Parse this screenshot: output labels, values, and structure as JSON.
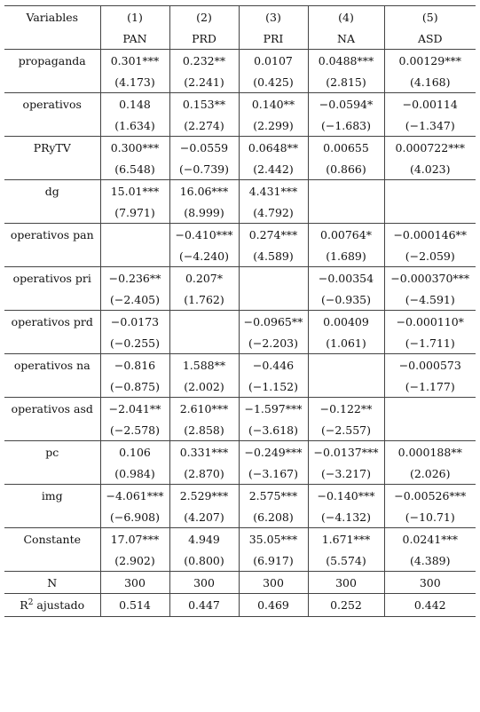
{
  "table": {
    "header_label": "Variables",
    "column_numbers": [
      "(1)",
      "(2)",
      "(3)",
      "(4)",
      "(5)"
    ],
    "column_names": [
      "PAN",
      "PRD",
      "PRI",
      "NA",
      "ASD"
    ],
    "rows": [
      {
        "label": "propaganda",
        "coef": [
          "0.301***",
          "0.232**",
          "0.0107",
          "0.0488***",
          "0.00129***"
        ],
        "se": [
          "(4.173)",
          "(2.241)",
          "(0.425)",
          "(2.815)",
          "(4.168)"
        ]
      },
      {
        "label": "operativos",
        "coef": [
          "0.148",
          "0.153**",
          "0.140**",
          "−0.0594*",
          "−0.00114"
        ],
        "se": [
          "(1.634)",
          "(2.274)",
          "(2.299)",
          "(−1.683)",
          "(−1.347)"
        ]
      },
      {
        "label": "PRyTV",
        "coef": [
          "0.300***",
          "−0.0559",
          "0.0648**",
          "0.00655",
          "0.000722***"
        ],
        "se": [
          "(6.548)",
          "(−0.739)",
          "(2.442)",
          "(0.866)",
          "(4.023)"
        ]
      },
      {
        "label": "dg",
        "coef": [
          "15.01***",
          "16.06***",
          "4.431***",
          "",
          ""
        ],
        "se": [
          "(7.971)",
          "(8.999)",
          "(4.792)",
          "",
          ""
        ]
      },
      {
        "label": "operativos pan",
        "coef": [
          "",
          "−0.410***",
          "0.274***",
          "0.00764*",
          "−0.000146**"
        ],
        "se": [
          "",
          "(−4.240)",
          "(4.589)",
          "(1.689)",
          "(−2.059)"
        ]
      },
      {
        "label": "operativos pri",
        "coef": [
          "−0.236**",
          "0.207*",
          "",
          "−0.00354",
          "−0.000370***"
        ],
        "se": [
          "(−2.405)",
          "(1.762)",
          "",
          "(−0.935)",
          "(−4.591)"
        ]
      },
      {
        "label": "operativos prd",
        "coef": [
          "−0.0173",
          "",
          "−0.0965**",
          "0.00409",
          "−0.000110*"
        ],
        "se": [
          "(−0.255)",
          "",
          "(−2.203)",
          "(1.061)",
          "(−1.711)"
        ]
      },
      {
        "label": "operativos na",
        "coef": [
          "−0.816",
          "1.588**",
          "−0.446",
          "",
          "−0.000573"
        ],
        "se": [
          "(−0.875)",
          "(2.002)",
          "(−1.152)",
          "",
          "(−1.177)"
        ]
      },
      {
        "label": "operativos asd",
        "coef": [
          "−2.041**",
          "2.610***",
          "−1.597***",
          "−0.122**",
          ""
        ],
        "se": [
          "(−2.578)",
          "(2.858)",
          "(−3.618)",
          "(−2.557)",
          ""
        ]
      },
      {
        "label": "pc",
        "coef": [
          "0.106",
          "0.331***",
          "−0.249***",
          "−0.0137***",
          "0.000188**"
        ],
        "se": [
          "(0.984)",
          "(2.870)",
          "(−3.167)",
          "(−3.217)",
          "(2.026)"
        ]
      },
      {
        "label": "img",
        "coef": [
          "−4.061***",
          "2.529***",
          "2.575***",
          "−0.140***",
          "−0.00526***"
        ],
        "se": [
          "(−6.908)",
          "(4.207)",
          "(6.208)",
          "(−4.132)",
          "(−10.71)"
        ]
      },
      {
        "label": "Constante",
        "coef": [
          "17.07***",
          "4.949",
          "35.05***",
          "1.671***",
          "0.0241***"
        ],
        "se": [
          "(2.902)",
          "(0.800)",
          "(6.917)",
          "(5.574)",
          "(4.389)"
        ]
      }
    ],
    "n_row": {
      "label": "N",
      "values": [
        "300",
        "300",
        "300",
        "300",
        "300"
      ]
    },
    "r2_row": {
      "label_prefix": "R",
      "label_sup": "2",
      "label_suffix": " ajustado",
      "values": [
        "0.514",
        "0.447",
        "0.469",
        "0.252",
        "0.442"
      ]
    }
  }
}
